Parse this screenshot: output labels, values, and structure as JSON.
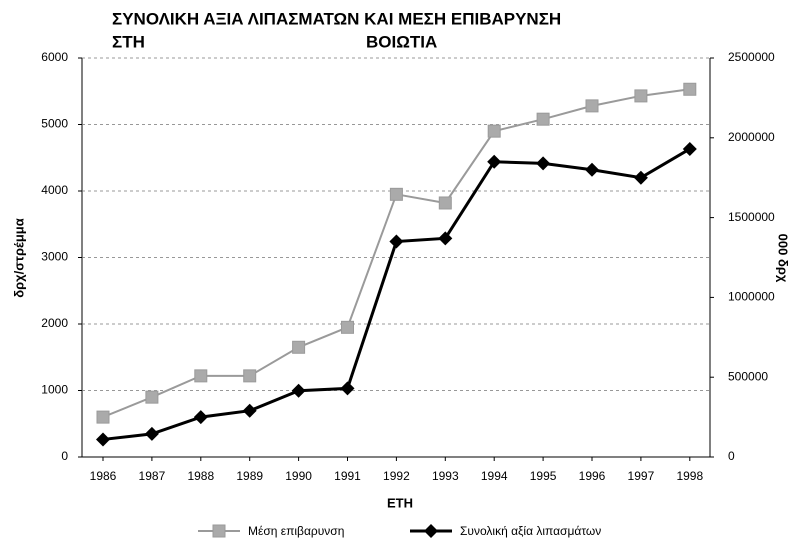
{
  "chart_data": {
    "type": "line",
    "title": [
      "ΣΥΝΟΛΙΚΗ ΑΞΙΑ ΛΙΠΑΣΜΑΤΩΝ ΚΑΙ ΜΕΣΗ ΕΠΙΒΑΡΥΝΣΗ",
      "ΣΤΗ",
      "ΒΟΙΩΤΙΑ"
    ],
    "x_label": "ΕΤΗ",
    "y_label": "δρχ/στρέμμα",
    "y2_label": "000 δρχ",
    "categories": [
      "1986",
      "1987",
      "1988",
      "1989",
      "1990",
      "1991",
      "1992",
      "1993",
      "1994",
      "1995",
      "1996",
      "1997",
      "1998"
    ],
    "series": [
      {
        "name": "Μέση επιβαρυνση",
        "color": "#9a9a9a",
        "marker": "square",
        "axis": "y",
        "values": [
          600,
          900,
          1220,
          1220,
          1650,
          1950,
          3950,
          3820,
          4900,
          5080,
          5280,
          5430,
          5530
        ]
      },
      {
        "name": "Συνολική αξία λιπασμάτων",
        "color": "#000000",
        "marker": "diamond",
        "axis": "y2",
        "values": [
          110000,
          145000,
          250000,
          290000,
          415000,
          430000,
          1350000,
          1370000,
          1850000,
          1840000,
          1800000,
          1750000,
          1930000
        ]
      }
    ],
    "ylim": [
      0,
      6000
    ],
    "yticks": [
      0,
      1000,
      2000,
      3000,
      4000,
      5000,
      6000
    ],
    "y2lim": [
      0,
      2500000
    ],
    "y2ticks": [
      0,
      500000,
      1000000,
      1500000,
      2000000,
      2500000
    ],
    "grid": true,
    "legend": "bottom"
  }
}
